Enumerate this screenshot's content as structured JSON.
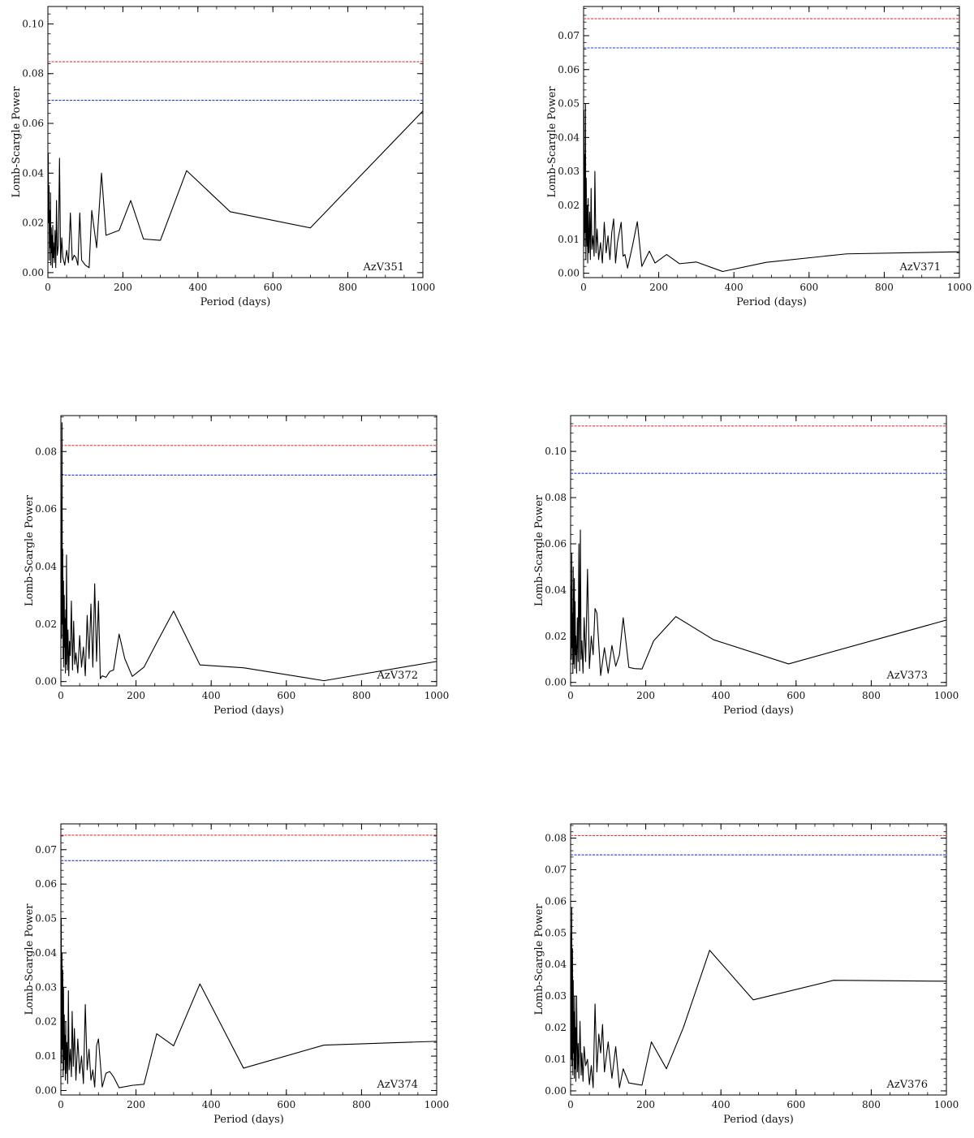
{
  "page": {
    "background": "#ffffff"
  },
  "style": {
    "series_color": "#000000",
    "level_colors": [
      "#e53935",
      "#1e3fd8"
    ]
  },
  "chart_data": [
    {
      "type": "line",
      "label": "AzV351",
      "xlabel": "Period (days)",
      "ylabel": "Lomb-Scargle Power",
      "xlim": [
        0,
        1000
      ],
      "ylim": [
        -0.002,
        0.107
      ],
      "xticks": [
        0,
        200,
        400,
        600,
        800,
        1000
      ],
      "xtick_labels": [
        "0",
        "200",
        "400",
        "600",
        "800",
        "1000"
      ],
      "yticks": [
        0,
        0.02,
        0.04,
        0.06,
        0.08,
        0.1
      ],
      "ytick_labels": [
        "0.00",
        "0.02",
        "0.04",
        "0.06",
        "0.08",
        "0.10"
      ],
      "levels": [
        {
          "color": "#e53935",
          "y": 0.0848
        },
        {
          "color": "#1e3fd8",
          "y": 0.0693
        }
      ],
      "series": [
        {
          "x": [
            1,
            2,
            3,
            4,
            5,
            6,
            7,
            8,
            9,
            10,
            11,
            12,
            13,
            14,
            15,
            17,
            19,
            21,
            23,
            25,
            28,
            31,
            34,
            37,
            40,
            45,
            50,
            55,
            60,
            65,
            70,
            75,
            80,
            85,
            90,
            100,
            110,
            117,
            130,
            143,
            155,
            190,
            221,
            255,
            300,
            370,
            486,
            700,
            1000
          ],
          "y": [
            0.048,
            0.02,
            0.035,
            0.005,
            0.025,
            0.01,
            0.032,
            0.003,
            0.018,
            0.008,
            0.015,
            0.002,
            0.019,
            0.006,
            0.012,
            0.004,
            0.017,
            0.002,
            0.029,
            0.007,
            0.011,
            0.046,
            0.004,
            0.014,
            0.006,
            0.003,
            0.009,
            0.004,
            0.024,
            0.005,
            0.007,
            0.006,
            0.003,
            0.024,
            0.005,
            0.003,
            0.002,
            0.025,
            0.01,
            0.04,
            0.015,
            0.017,
            0.029,
            0.0135,
            0.013,
            0.041,
            0.0245,
            0.018,
            0.065
          ]
        }
      ]
    },
    {
      "type": "line",
      "label": "AzV371",
      "xlabel": "Period (days)",
      "ylabel": "Lomb-Scargle Power",
      "xlim": [
        0,
        1000
      ],
      "ylim": [
        -0.0013,
        0.0786
      ],
      "xticks": [
        0,
        200,
        400,
        600,
        800,
        1000
      ],
      "xtick_labels": [
        "0",
        "200",
        "400",
        "600",
        "800",
        "1000"
      ],
      "yticks": [
        0,
        0.01,
        0.02,
        0.03,
        0.04,
        0.05,
        0.06,
        0.07
      ],
      "ytick_labels": [
        "0.00",
        "0.01",
        "0.02",
        "0.03",
        "0.04",
        "0.05",
        "0.06",
        "0.07"
      ],
      "levels": [
        {
          "color": "#e53935",
          "y": 0.075
        },
        {
          "color": "#1e3fd8",
          "y": 0.0664
        }
      ],
      "series": [
        {
          "x": [
            1,
            2,
            3,
            4,
            5,
            6,
            7,
            8,
            9,
            10,
            11,
            12,
            13,
            14,
            16,
            18,
            20,
            22,
            25,
            28,
            30,
            33,
            36,
            40,
            45,
            50,
            55,
            60,
            65,
            70,
            75,
            80,
            85,
            90,
            100,
            105,
            110,
            117,
            130,
            143,
            155,
            175,
            190,
            221,
            255,
            300,
            370,
            486,
            700,
            1000
          ],
          "y": [
            0.048,
            0.008,
            0.035,
            0.012,
            0.05,
            0.004,
            0.028,
            0.015,
            0.008,
            0.02,
            0.003,
            0.022,
            0.01,
            0.006,
            0.018,
            0.004,
            0.025,
            0.007,
            0.011,
            0.005,
            0.03,
            0.006,
            0.013,
            0.004,
            0.009,
            0.003,
            0.015,
            0.006,
            0.011,
            0.004,
            0.012,
            0.016,
            0.003,
            0.009,
            0.015,
            0.005,
            0.0055,
            0.0015,
            0.008,
            0.0152,
            0.002,
            0.0065,
            0.003,
            0.0055,
            0.0028,
            0.0033,
            0.0005,
            0.0032,
            0.0057,
            0.0063
          ]
        }
      ]
    },
    {
      "type": "line",
      "label": "AzV372",
      "xlabel": "Period (days)",
      "ylabel": "Lomb-Scargle Power",
      "xlim": [
        0,
        1000
      ],
      "ylim": [
        -0.0015,
        0.0925
      ],
      "xticks": [
        0,
        200,
        400,
        600,
        800,
        1000
      ],
      "xtick_labels": [
        "0",
        "200",
        "400",
        "600",
        "800",
        "1000"
      ],
      "yticks": [
        0,
        0.02,
        0.04,
        0.06,
        0.08
      ],
      "ytick_labels": [
        "0.00",
        "0.02",
        "0.04",
        "0.06",
        "0.08"
      ],
      "levels": [
        {
          "color": "#e53935",
          "y": 0.0821
        },
        {
          "color": "#1e3fd8",
          "y": 0.0718
        }
      ],
      "series": [
        {
          "x": [
            1,
            2,
            3,
            4,
            5,
            6,
            7,
            8,
            9,
            10,
            11,
            12,
            13,
            14,
            15,
            17,
            19,
            21,
            23,
            25,
            28,
            31,
            34,
            37,
            40,
            45,
            50,
            55,
            60,
            65,
            70,
            75,
            80,
            85,
            90,
            95,
            100,
            105,
            110,
            120,
            130,
            140,
            155,
            170,
            190,
            221,
            255,
            300,
            370,
            486,
            700,
            1000
          ],
          "y": [
            0.063,
            0.015,
            0.09,
            0.02,
            0.046,
            0.008,
            0.035,
            0.005,
            0.03,
            0.012,
            0.022,
            0.003,
            0.025,
            0.006,
            0.044,
            0.004,
            0.018,
            0.002,
            0.014,
            0.009,
            0.028,
            0.004,
            0.021,
            0.006,
            0.01,
            0.003,
            0.016,
            0.005,
            0.012,
            0.002,
            0.023,
            0.008,
            0.027,
            0.005,
            0.034,
            0.007,
            0.028,
            0.001,
            0.002,
            0.0015,
            0.0035,
            0.004,
            0.0165,
            0.008,
            0.0018,
            0.005,
            0.0135,
            0.0245,
            0.0058,
            0.0048,
            0.0003,
            0.007
          ]
        }
      ]
    },
    {
      "type": "line",
      "label": "AzV373",
      "xlabel": "Period (days)",
      "ylabel": "Lomb-Scargle Power",
      "xlim": [
        0,
        1000
      ],
      "ylim": [
        -0.0015,
        0.1155
      ],
      "xticks": [
        0,
        200,
        400,
        600,
        800,
        1000
      ],
      "xtick_labels": [
        "0",
        "200",
        "400",
        "600",
        "800",
        "1000"
      ],
      "yticks": [
        0,
        0.02,
        0.04,
        0.06,
        0.08,
        0.1
      ],
      "ytick_labels": [
        "0.00",
        "0.02",
        "0.04",
        "0.06",
        "0.08",
        "0.10"
      ],
      "levels": [
        {
          "color": "#e53935",
          "y": 0.111
        },
        {
          "color": "#1e3fd8",
          "y": 0.0905
        }
      ],
      "series": [
        {
          "x": [
            1,
            2,
            3,
            4,
            5,
            6,
            7,
            8,
            9,
            10,
            11,
            12,
            13,
            14,
            16,
            18,
            20,
            22,
            24,
            26,
            28,
            30,
            33,
            36,
            40,
            45,
            50,
            55,
            60,
            65,
            70,
            80,
            90,
            100,
            110,
            120,
            130,
            140,
            155,
            170,
            190,
            221,
            280,
            380,
            580,
            1000
          ],
          "y": [
            0.042,
            0.01,
            0.056,
            0.015,
            0.03,
            0.004,
            0.05,
            0.008,
            0.025,
            0.045,
            0.006,
            0.035,
            0.012,
            0.02,
            0.004,
            0.028,
            0.009,
            0.06,
            0.005,
            0.066,
            0.01,
            0.018,
            0.004,
            0.028,
            0.009,
            0.049,
            0.006,
            0.02,
            0.012,
            0.032,
            0.03,
            0.003,
            0.015,
            0.004,
            0.016,
            0.007,
            0.012,
            0.028,
            0.0065,
            0.006,
            0.0058,
            0.018,
            0.0285,
            0.0185,
            0.008,
            0.027
          ]
        }
      ]
    },
    {
      "type": "line",
      "label": "AzV374",
      "xlabel": "Period (days)",
      "ylabel": "Lomb-Scargle Power",
      "xlim": [
        0,
        1000
      ],
      "ylim": [
        -0.0013,
        0.0775
      ],
      "xticks": [
        0,
        200,
        400,
        600,
        800,
        1000
      ],
      "xtick_labels": [
        "0",
        "200",
        "400",
        "600",
        "800",
        "1000"
      ],
      "yticks": [
        0,
        0.01,
        0.02,
        0.03,
        0.04,
        0.05,
        0.06,
        0.07
      ],
      "ytick_labels": [
        "0.00",
        "0.01",
        "0.02",
        "0.03",
        "0.04",
        "0.05",
        "0.06",
        "0.07"
      ],
      "levels": [
        {
          "color": "#e53935",
          "y": 0.0742
        },
        {
          "color": "#1e3fd8",
          "y": 0.0668
        }
      ],
      "series": [
        {
          "x": [
            1,
            2,
            3,
            4,
            5,
            6,
            7,
            8,
            9,
            10,
            11,
            12,
            13,
            14,
            16,
            18,
            20,
            22,
            25,
            28,
            30,
            33,
            36,
            40,
            45,
            50,
            55,
            60,
            65,
            70,
            75,
            80,
            85,
            90,
            95,
            100,
            110,
            120,
            130,
            140,
            155,
            190,
            221,
            255,
            300,
            370,
            486,
            700,
            1000
          ],
          "y": [
            0.05,
            0.008,
            0.04,
            0.012,
            0.035,
            0.004,
            0.03,
            0.006,
            0.022,
            0.009,
            0.016,
            0.003,
            0.02,
            0.005,
            0.014,
            0.002,
            0.029,
            0.006,
            0.012,
            0.004,
            0.023,
            0.007,
            0.018,
            0.003,
            0.015,
            0.005,
            0.01,
            0.002,
            0.025,
            0.006,
            0.012,
            0.003,
            0.006,
            0.001,
            0.013,
            0.015,
            0.001,
            0.005,
            0.0055,
            0.004,
            0.0008,
            0.0015,
            0.0018,
            0.0165,
            0.013,
            0.031,
            0.0065,
            0.0132,
            0.0143
          ]
        }
      ]
    },
    {
      "type": "line",
      "label": "AzV376",
      "xlabel": "Period (days)",
      "ylabel": "Lomb-Scargle Power",
      "xlim": [
        0,
        1000
      ],
      "ylim": [
        -0.0013,
        0.0845
      ],
      "xticks": [
        0,
        200,
        400,
        600,
        800,
        1000
      ],
      "xtick_labels": [
        "0",
        "200",
        "400",
        "600",
        "800",
        "1000"
      ],
      "yticks": [
        0,
        0.01,
        0.02,
        0.03,
        0.04,
        0.05,
        0.06,
        0.07,
        0.08
      ],
      "ytick_labels": [
        "0.00",
        "0.01",
        "0.02",
        "0.03",
        "0.04",
        "0.05",
        "0.06",
        "0.07",
        "0.08"
      ],
      "levels": [
        {
          "color": "#e53935",
          "y": 0.0808
        },
        {
          "color": "#1e3fd8",
          "y": 0.0747
        }
      ],
      "series": [
        {
          "x": [
            1,
            2,
            3,
            4,
            5,
            6,
            7,
            8,
            9,
            10,
            11,
            12,
            13,
            14,
            16,
            18,
            20,
            22,
            25,
            28,
            30,
            33,
            36,
            40,
            45,
            50,
            55,
            60,
            65,
            70,
            75,
            80,
            85,
            90,
            100,
            110,
            120,
            130,
            140,
            155,
            190,
            215,
            255,
            300,
            370,
            486,
            700,
            1000
          ],
          "y": [
            0.05,
            0.01,
            0.058,
            0.008,
            0.045,
            0.005,
            0.035,
            0.012,
            0.025,
            0.004,
            0.03,
            0.007,
            0.02,
            0.003,
            0.03,
            0.006,
            0.015,
            0.004,
            0.022,
            0.005,
            0.012,
            0.003,
            0.014,
            0.008,
            0.01,
            0.002,
            0.008,
            0.001,
            0.0275,
            0.006,
            0.018,
            0.012,
            0.021,
            0.006,
            0.0155,
            0.004,
            0.014,
            0.001,
            0.007,
            0.0025,
            0.0018,
            0.0155,
            0.007,
            0.02,
            0.0445,
            0.0288,
            0.035,
            0.0347
          ]
        }
      ]
    }
  ]
}
